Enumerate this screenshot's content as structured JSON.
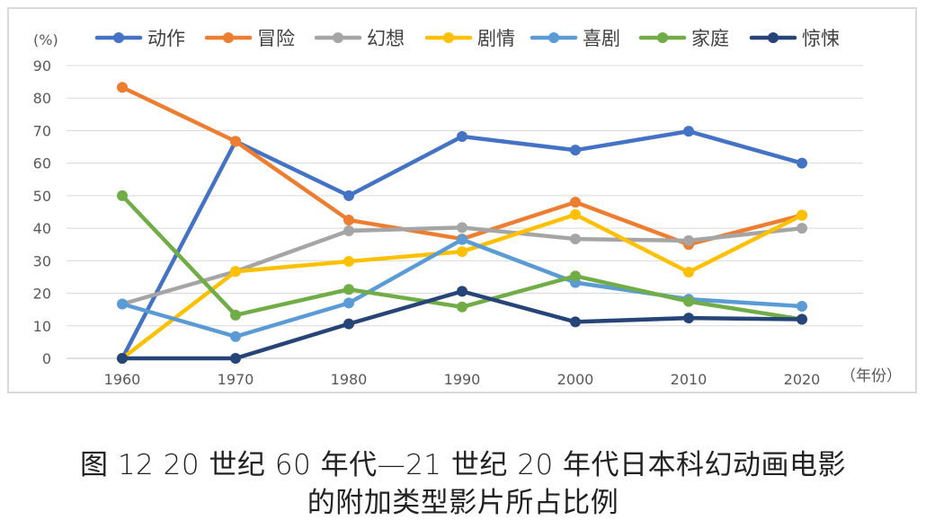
{
  "chart_data": {
    "type": "line",
    "title": "",
    "ylabel": "(%)",
    "xlabel": "（年份）",
    "ylim": [
      0,
      90
    ],
    "yticks": [
      0,
      10,
      20,
      30,
      40,
      50,
      60,
      70,
      80,
      90
    ],
    "categories": [
      "1960",
      "1970",
      "1980",
      "1990",
      "2000",
      "2010",
      "2020"
    ],
    "grid": true,
    "legend_position": "top",
    "series": [
      {
        "name": "动作",
        "color": "#4472c4",
        "values": [
          0,
          66.7,
          50,
          68.2,
          64,
          69.8,
          60
        ]
      },
      {
        "name": "冒险",
        "color": "#ed7d31",
        "values": [
          83.3,
          66.7,
          42.5,
          36.7,
          48,
          35,
          44
        ]
      },
      {
        "name": "幻想",
        "color": "#a5a5a5",
        "values": [
          16.7,
          26.7,
          39.2,
          40.2,
          36.7,
          36.2,
          40
        ]
      },
      {
        "name": "剧情",
        "color": "#ffc000",
        "values": [
          0,
          26.7,
          29.8,
          32.8,
          44.2,
          26.5,
          44
        ]
      },
      {
        "name": "喜剧",
        "color": "#5b9bd5",
        "values": [
          16.7,
          6.7,
          17,
          36.5,
          23.3,
          18.2,
          16
        ]
      },
      {
        "name": "家庭",
        "color": "#70ad47",
        "values": [
          50,
          13.3,
          21.2,
          15.8,
          25.3,
          17.5,
          12
        ]
      },
      {
        "name": "惊悚",
        "color": "#264478",
        "values": [
          0,
          0,
          10.6,
          20.6,
          11.2,
          12.4,
          12
        ]
      }
    ]
  },
  "caption": {
    "line1": "图 12  20 世纪 60 年代—21 世纪 20 年代日本科幻动画电影",
    "line2": "的附加类型影片所占比例"
  }
}
